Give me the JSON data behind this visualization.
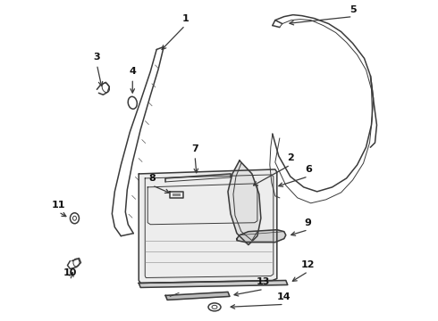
{
  "bg_color": "#ffffff",
  "line_color": "#3a3a3a",
  "label_color": "#111111",
  "fig_width": 4.9,
  "fig_height": 3.6,
  "dpi": 100
}
